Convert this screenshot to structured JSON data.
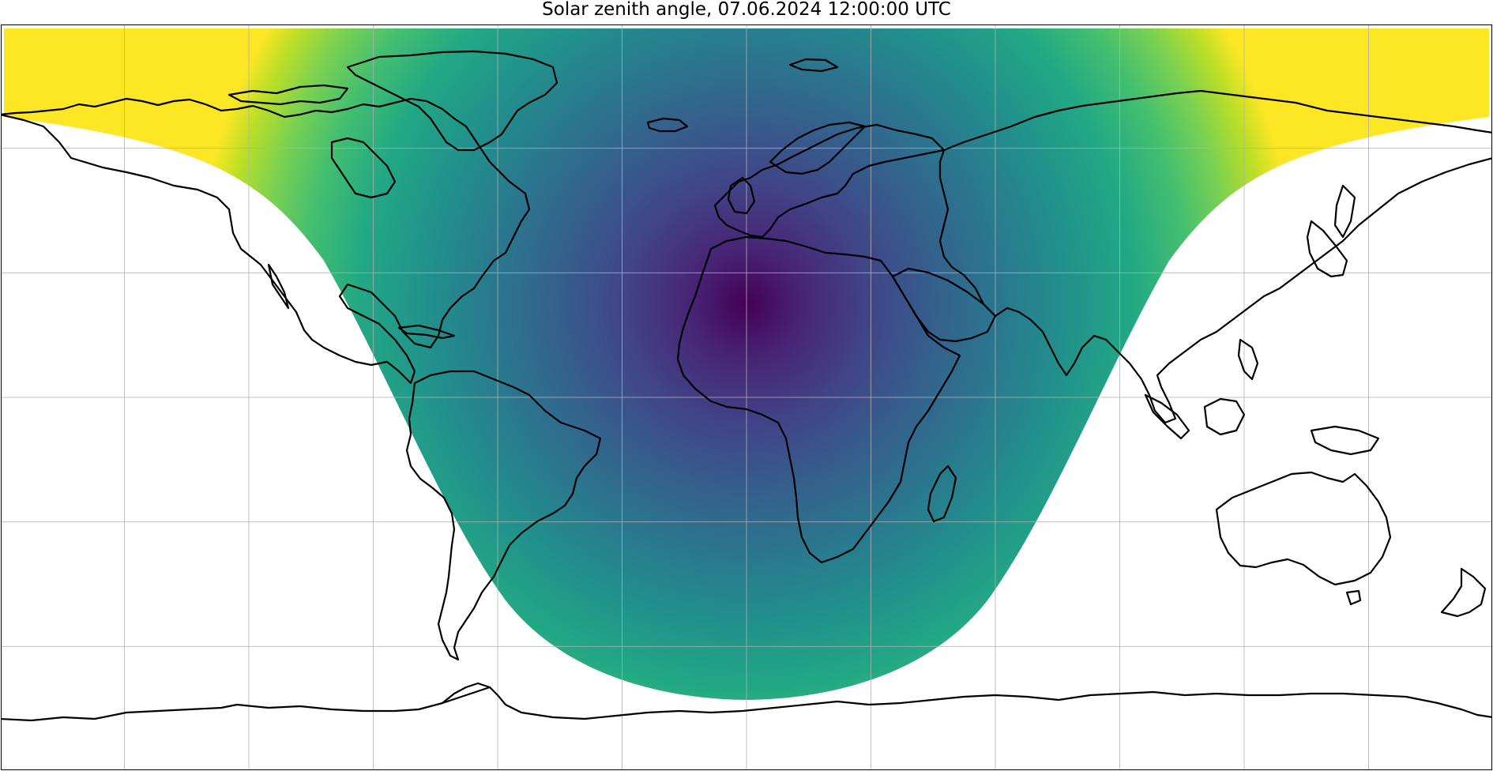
{
  "figure": {
    "title": "Solar zenith angle, 07.06.2024 12:00:00 UTC"
  },
  "map": {
    "projection": "plate-carree",
    "extent": {
      "lon": [
        -180,
        180
      ],
      "lat": [
        -90,
        90
      ]
    },
    "gridlines": true,
    "gridline_spacing_deg": 30,
    "coastlines": true,
    "colormap": "viridis",
    "colors": {
      "colormap_low": "#440154",
      "colormap_high": "#fde725",
      "coastline": "#000000",
      "gridline": "#b0b0b0",
      "night": "#ffffff",
      "frame": "#000000"
    },
    "subsolar_point": {
      "lon": 0,
      "lat": 22.7
    },
    "shaded_range_deg": [
      0,
      90
    ],
    "night_area_unshaded": true
  }
}
